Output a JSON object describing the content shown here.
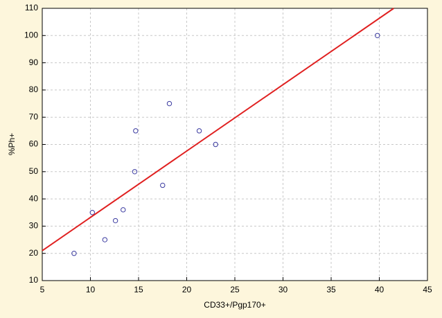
{
  "chart_data": {
    "type": "scatter",
    "x_label": "CD33+/Pgp170+",
    "y_label": "%Ph+",
    "series": [
      {
        "color": "#3a3aa0",
        "x": [
          8.3,
          10.2,
          11.5,
          12.6,
          13.4,
          14.6,
          14.7,
          17.5,
          18.2,
          21.3,
          23.0,
          39.8
        ],
        "values": [
          20,
          35,
          25,
          32,
          36,
          50,
          65,
          45,
          75,
          65,
          60,
          100
        ]
      }
    ],
    "fit_line": {
      "color": "#e02020",
      "x": [
        5,
        41.5
      ],
      "values": [
        21,
        110
      ]
    },
    "xlim": [
      5,
      45
    ],
    "xticks": [
      5,
      10,
      15,
      20,
      25,
      30,
      35,
      40,
      45
    ],
    "ylim": [
      10,
      110
    ],
    "yticks": [
      10,
      20,
      30,
      40,
      50,
      60,
      70,
      80,
      90,
      100,
      110
    ],
    "grid": true
  }
}
